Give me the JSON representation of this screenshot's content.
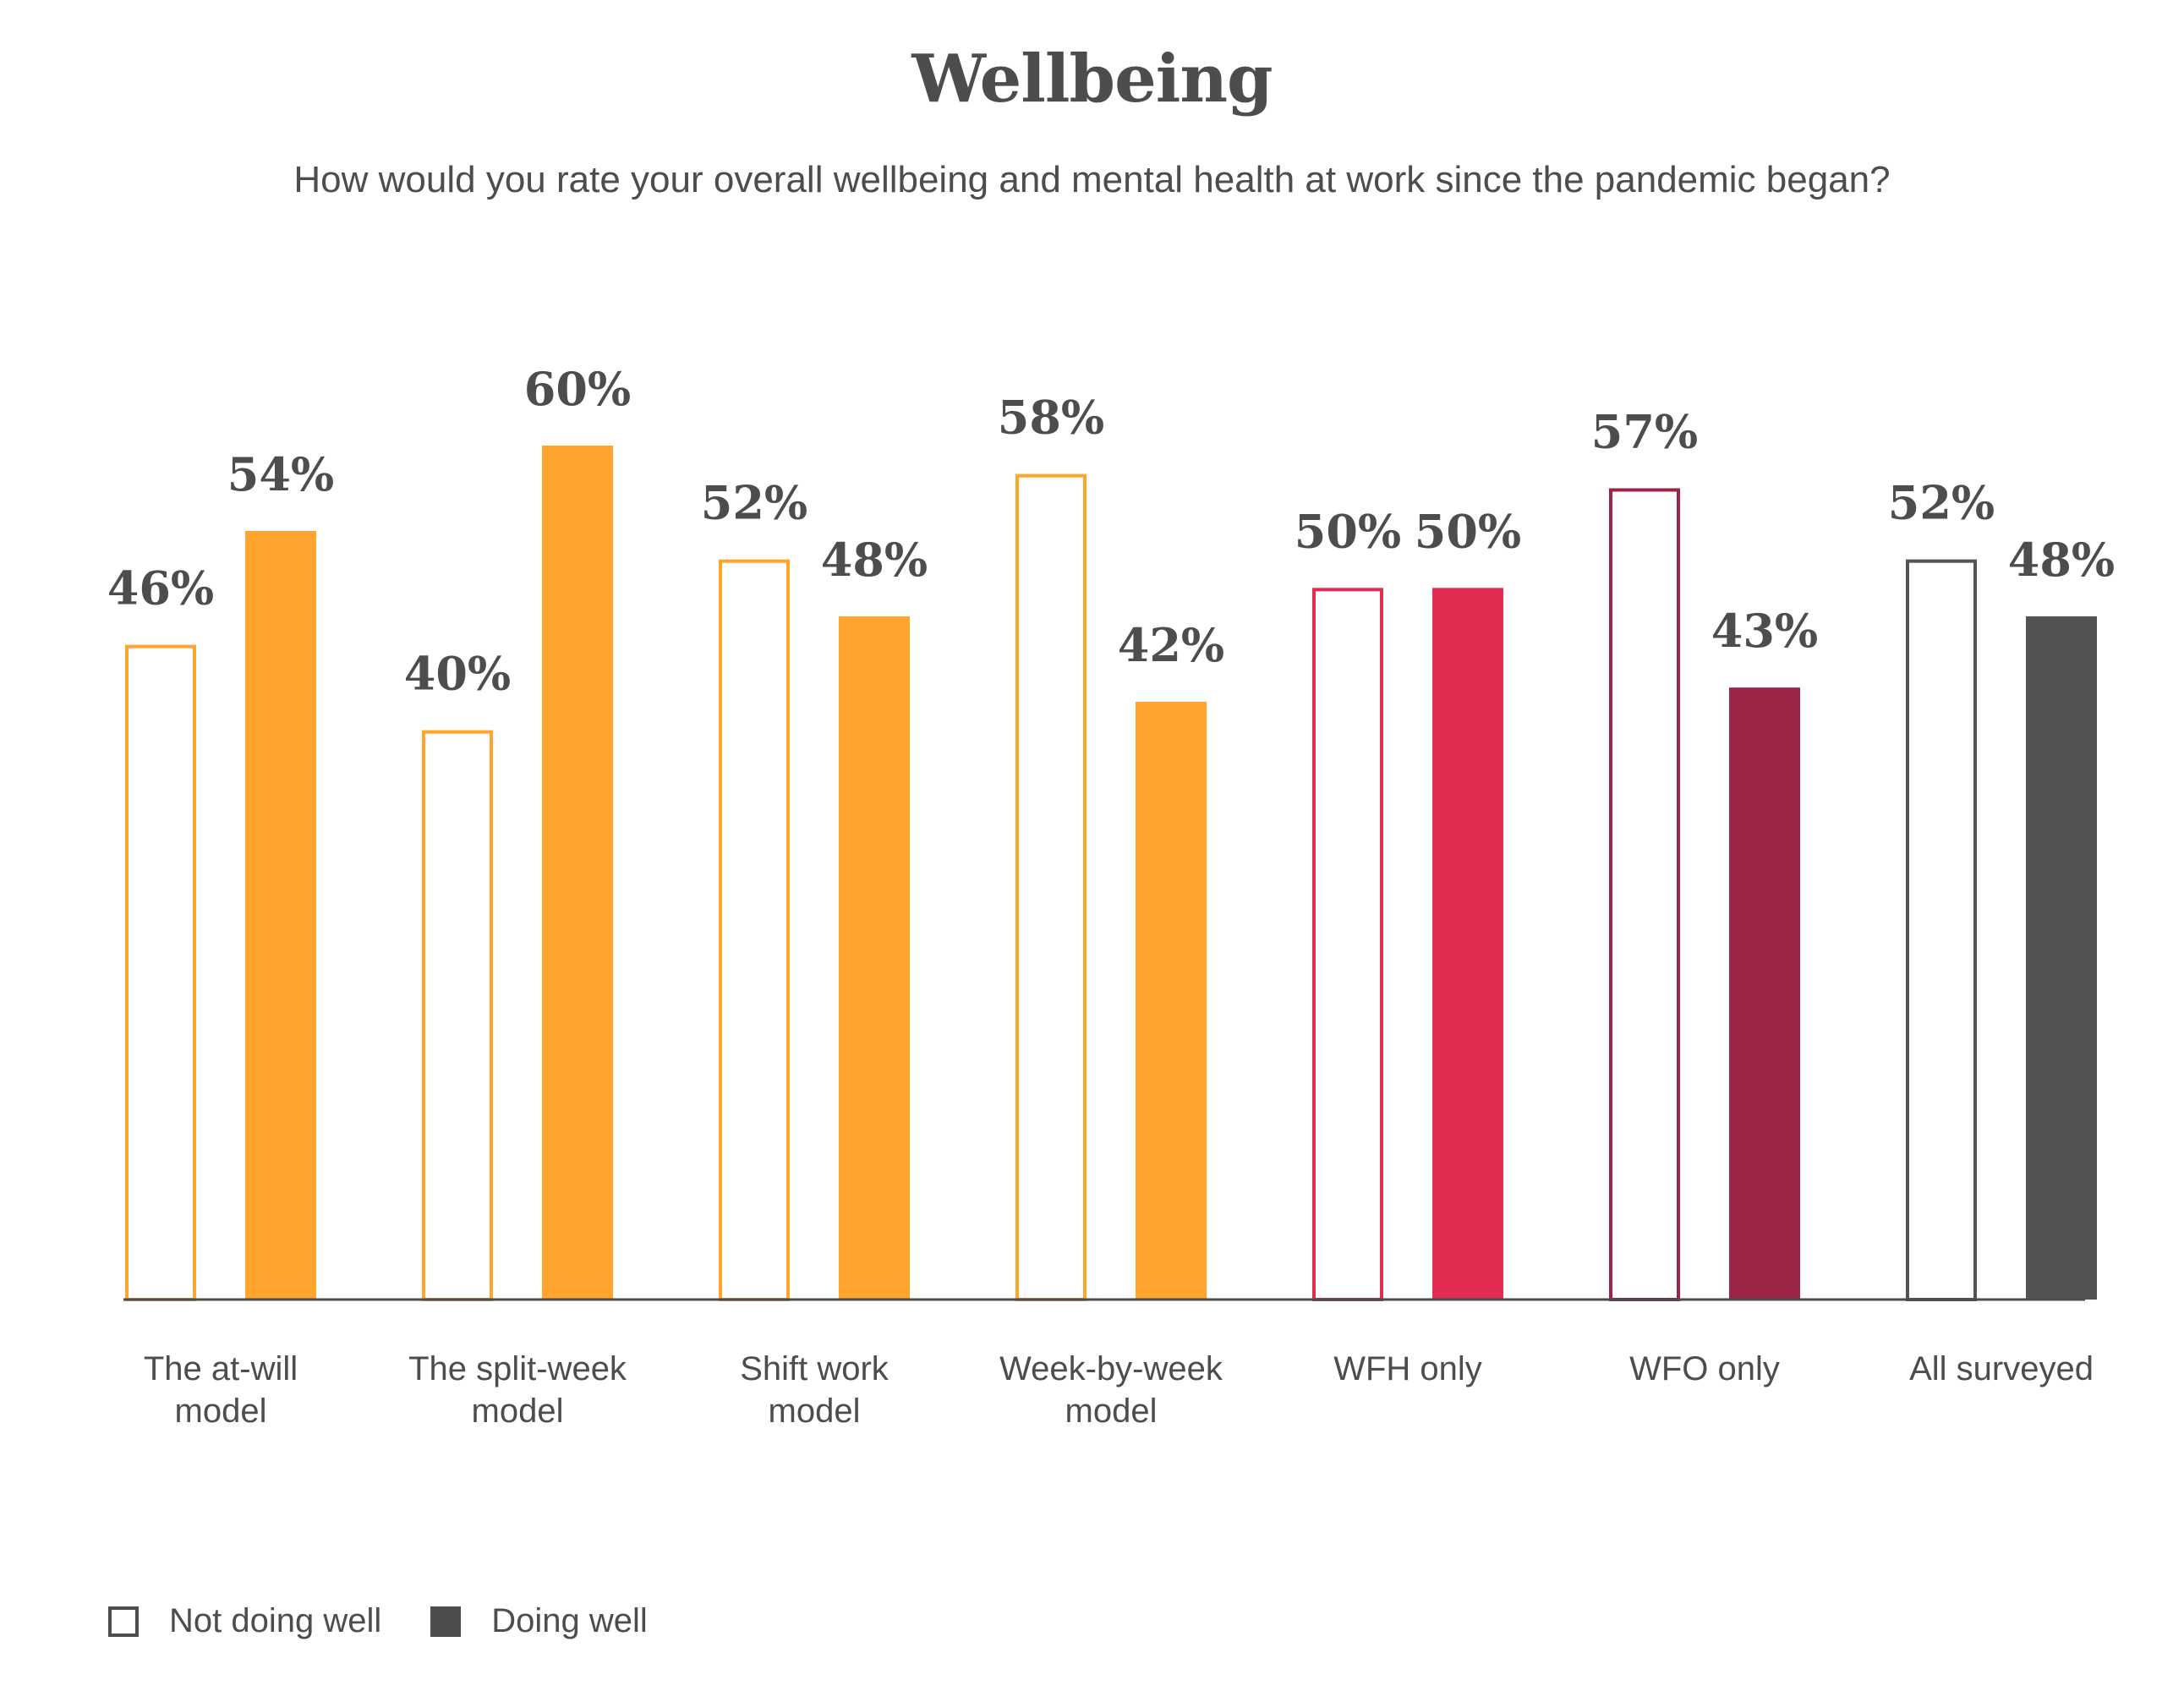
{
  "colors": {
    "orange": "#ffa42c",
    "red": "#e22d52",
    "crimson": "#9c2444",
    "gray": "#535353",
    "axis": "#4d4d4d"
  },
  "chart_data": {
    "type": "bar",
    "title": "Wellbeing",
    "subtitle": "How would you rate your overall wellbeing and mental health at work since the pandemic began?",
    "xlabel": "",
    "ylabel": "",
    "ylim": [
      0,
      60
    ],
    "grid": false,
    "legend_position": "bottom-left",
    "value_suffix": "%",
    "categories": [
      {
        "label": [
          "The at-will",
          "model"
        ],
        "color": "#ffa42c"
      },
      {
        "label": [
          "The split-week",
          "model"
        ],
        "color": "#ffa42c"
      },
      {
        "label": [
          "Shift work",
          "model"
        ],
        "color": "#ffa42c"
      },
      {
        "label": [
          "Week-by-week",
          "model"
        ],
        "color": "#ffa42c"
      },
      {
        "label": [
          "WFH only"
        ],
        "color": "#e22d52"
      },
      {
        "label": [
          "WFO only"
        ],
        "color": "#9c2444"
      },
      {
        "label": [
          "All surveyed"
        ],
        "color": "#535353"
      }
    ],
    "series": [
      {
        "name": "Not doing well",
        "style": "outline",
        "values": [
          46,
          40,
          52,
          58,
          50,
          57,
          52
        ]
      },
      {
        "name": "Doing well",
        "style": "filled",
        "values": [
          54,
          60,
          48,
          42,
          50,
          43,
          48
        ]
      }
    ]
  },
  "legend": {
    "not_doing_well": "Not doing well",
    "doing_well": "Doing well"
  }
}
